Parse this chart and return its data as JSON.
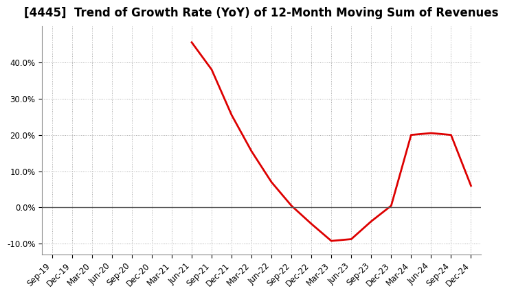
{
  "title": "[4445]  Trend of Growth Rate (YoY) of 12-Month Moving Sum of Revenues",
  "x_labels": [
    "Sep-19",
    "Dec-19",
    "Mar-20",
    "Jun-20",
    "Sep-20",
    "Dec-20",
    "Mar-21",
    "Jun-21",
    "Sep-21",
    "Dec-21",
    "Mar-22",
    "Jun-22",
    "Sep-22",
    "Dec-22",
    "Mar-23",
    "Jun-23",
    "Sep-23",
    "Dec-23",
    "Mar-24",
    "Jun-24",
    "Sep-24",
    "Dec-24"
  ],
  "y_values": [
    null,
    null,
    null,
    null,
    null,
    null,
    null,
    0.455,
    0.38,
    0.255,
    0.155,
    0.07,
    0.005,
    -0.045,
    -0.092,
    -0.087,
    -0.038,
    0.005,
    0.2,
    0.205,
    0.2,
    0.06
  ],
  "line_color": "#dd0000",
  "line_width": 2.0,
  "background_color": "#ffffff",
  "plot_bg_color": "#ffffff",
  "grid_color": "#aaaaaa",
  "ylim": [
    -0.13,
    0.5
  ],
  "yticks": [
    -0.1,
    0.0,
    0.1,
    0.2,
    0.3,
    0.4
  ],
  "zero_line_color": "#555555",
  "title_fontsize": 12,
  "tick_fontsize": 8.5
}
